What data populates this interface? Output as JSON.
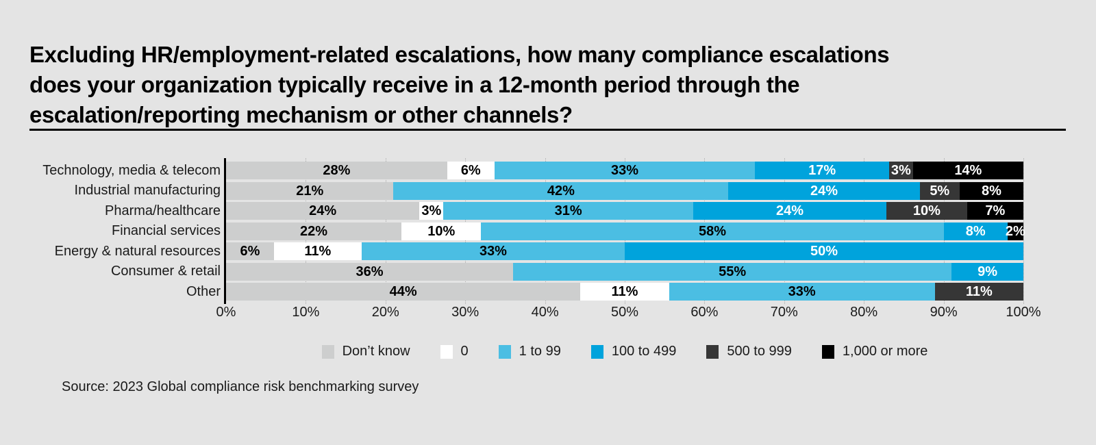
{
  "title": {
    "lines": [
      "Excluding HR/employment-related escalations, how many compliance escalations",
      "does your organization typically receive in a 12-month period through the",
      "escalation/reporting mechanism or other channels?"
    ]
  },
  "source": "Source: 2023 Global compliance risk benchmarking survey",
  "colors": {
    "background": "#E4E4E4",
    "axis": "#000000",
    "gridline": "#A9A9A9",
    "text": "#1A1A1A"
  },
  "chart_data": {
    "type": "bar",
    "orientation": "horizontal-stacked",
    "title": "Excluding HR/employment-related escalations, how many compliance escalations does your organization typically receive in a 12-month period through the escalation/reporting mechanism or other channels?",
    "xlabel": "",
    "ylabel": "",
    "xlim": [
      0,
      100
    ],
    "x_tick_labels": [
      "0%",
      "10%",
      "20%",
      "30%",
      "40%",
      "50%",
      "60%",
      "70%",
      "80%",
      "90%",
      "100%"
    ],
    "grid": "dotted vertical lines every 10%",
    "legend_position": "bottom",
    "value_suffix": "%",
    "categories": [
      "Technology, media & telecom",
      "Industrial manufacturing",
      "Pharma/healthcare",
      "Financial services",
      "Energy & natural resources",
      "Consumer & retail",
      "Other"
    ],
    "series": [
      {
        "name": "Don’t know",
        "color": "#CDCECE",
        "text_color": "#000000",
        "values": [
          28,
          21,
          24,
          22,
          6,
          36,
          44
        ]
      },
      {
        "name": "0",
        "color": "#FFFFFF",
        "text_color": "#000000",
        "values": [
          6,
          0,
          3,
          10,
          11,
          0,
          11
        ]
      },
      {
        "name": "1 to 99",
        "color": "#4BBEE3",
        "text_color": "#000000",
        "values": [
          33,
          42,
          31,
          58,
          33,
          55,
          33
        ]
      },
      {
        "name": "100 to 499",
        "color": "#00A3DC",
        "text_color": "#FFFFFF",
        "values": [
          17,
          24,
          24,
          8,
          50,
          9,
          0
        ]
      },
      {
        "name": "500 to 999",
        "color": "#363636",
        "text_color": "#FFFFFF",
        "values": [
          3,
          5,
          10,
          0,
          0,
          0,
          11
        ]
      },
      {
        "name": "1,000 or more",
        "color": "#000000",
        "text_color": "#FFFFFF",
        "values": [
          14,
          8,
          7,
          2,
          0,
          0,
          0
        ]
      }
    ]
  }
}
